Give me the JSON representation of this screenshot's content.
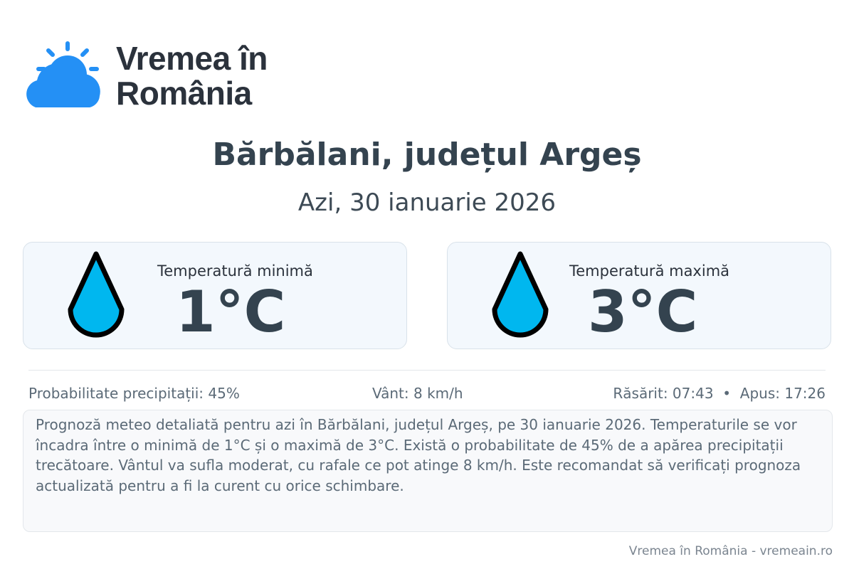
{
  "brand": {
    "line1": "Vremea în",
    "line2": "România",
    "accent": "#2490f5"
  },
  "title": "Bărbălani, județul Argeș",
  "date": "Azi, 30 ianuarie 2026",
  "min": {
    "label": "Temperatură minimă",
    "value": "1°C",
    "icon": "water-drop-icon"
  },
  "max": {
    "label": "Temperatură maximă",
    "value": "3°C",
    "icon": "water-drop-icon"
  },
  "stats": {
    "precip": "Probabilitate precipitații: 45%",
    "wind": "Vânt: 8 km/h",
    "sun": "Răsărit: 07:43  •  Apus: 17:26"
  },
  "description": "Prognoză meteo detaliată pentru azi în Bărbălani, județul Argeș, pe 30 ianuarie 2026. Temperaturile se vor încadra între o minimă de 1°C și o maximă de 3°C. Există o probabilitate de 45% de a apărea precipitații trecătoare. Vântul va sufla moderat, cu rafale ce pot atinge 8 km/h. Este recomandat să verificați prognoza actualizată pentru a fi la curent cu orice schimbare.",
  "footer": "Vremea în România - vremeain.ro"
}
